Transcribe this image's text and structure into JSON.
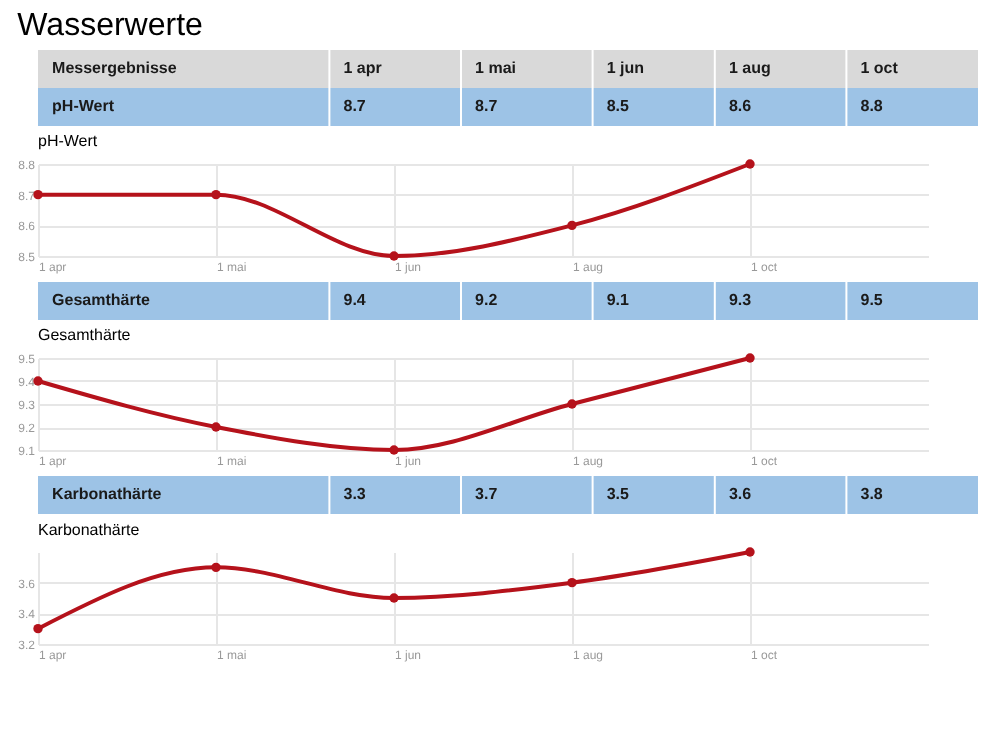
{
  "chart_data": [
    {
      "type": "line",
      "title": "Wasserwerte",
      "xlabel": "Messergebnisse",
      "ylabel": "pH-Wert",
      "subtitle": "pH-Wert",
      "categories": [
        "1 apr",
        "1 mai",
        "1 jun",
        "1 aug",
        "1 oct"
      ],
      "values": [
        8.7,
        8.7,
        8.5,
        8.6,
        8.8
      ],
      "annotations": [
        "8.7",
        "8.7",
        "8.5",
        "8.6",
        "8.8"
      ],
      "color": "#b5121b",
      "ylim": [
        8.5,
        8.8
      ],
      "yticks": [
        8.5,
        8.6,
        8.7,
        8.8
      ],
      "grid": true,
      "marker": "circle"
    },
    {
      "type": "line",
      "ylabel": "Gesamthärte",
      "subtitle": "Gesamthärte",
      "categories": [
        "1 apr",
        "1 mai",
        "1 jun",
        "1 aug",
        "1 oct"
      ],
      "values": [
        9.4,
        9.2,
        9.1,
        9.3,
        9.5
      ],
      "annotations": [
        "9.4",
        "9.2",
        "9.1",
        "9.3",
        "9.5"
      ],
      "color": "#b5121b",
      "ylim": [
        9.1,
        9.5
      ],
      "yticks": [
        9.1,
        9.2,
        9.3,
        9.4,
        9.5
      ],
      "grid": true,
      "marker": "circle"
    },
    {
      "type": "line",
      "ylabel": "Karbonathärte",
      "subtitle": "Karbonathärte",
      "categories": [
        "1 apr",
        "1 mai",
        "1 jun",
        "1 aug",
        "1 oct"
      ],
      "values": [
        3.3,
        3.7,
        3.5,
        3.6,
        3.8
      ],
      "annotations": [
        "3.3",
        "3.7",
        "3.5",
        "3.6",
        "3.8"
      ],
      "color": "#b5121b",
      "ylim": [
        3.2,
        3.8
      ],
      "yticks": [
        3.2,
        3.4,
        3.6
      ],
      "grid": true,
      "marker": "circle"
    }
  ]
}
